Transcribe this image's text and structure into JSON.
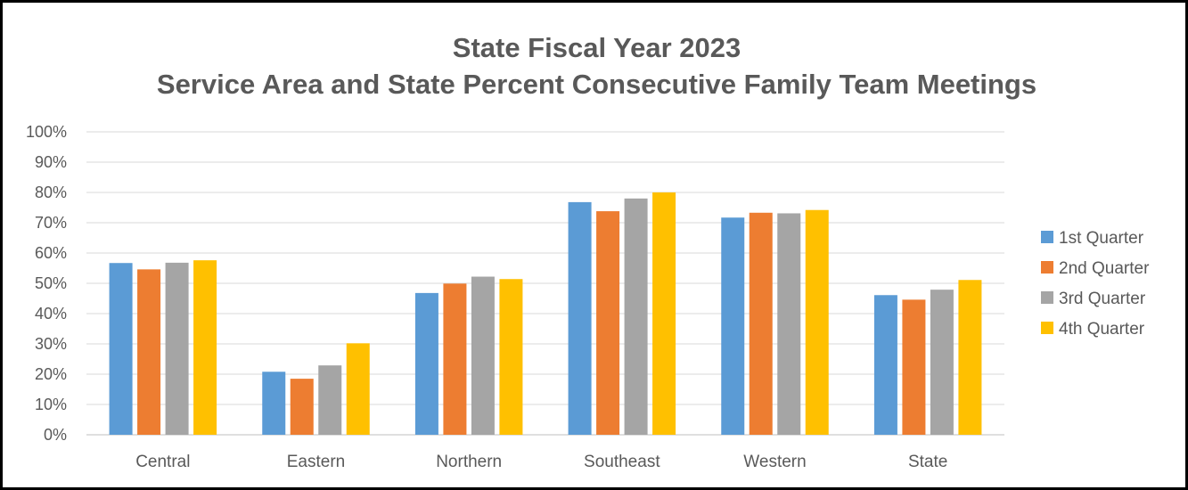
{
  "chart_data": {
    "type": "bar",
    "title": "State Fiscal Year 2023",
    "subtitle": "Service Area and State Percent Consecutive Family Team Meetings",
    "xlabel": "",
    "ylabel": "",
    "ylim": [
      0,
      100
    ],
    "y_ticks": [
      "0%",
      "10%",
      "20%",
      "30%",
      "40%",
      "50%",
      "60%",
      "70%",
      "80%",
      "90%",
      "100%"
    ],
    "grid": true,
    "legend_position": "right",
    "categories": [
      "Central",
      "Eastern",
      "Northern",
      "Southeast",
      "Western",
      "State"
    ],
    "series": [
      {
        "name": "1st Quarter",
        "color": "#5B9BD5",
        "values": [
          56.7,
          20.8,
          46.8,
          76.8,
          71.7,
          46.1
        ]
      },
      {
        "name": "2nd Quarter",
        "color": "#ED7D31",
        "values": [
          54.6,
          18.5,
          49.9,
          73.8,
          73.3,
          44.6
        ]
      },
      {
        "name": "3rd Quarter",
        "color": "#A5A5A5",
        "values": [
          56.8,
          22.9,
          52.2,
          78.0,
          73.1,
          47.9
        ]
      },
      {
        "name": "4th Quarter",
        "color": "#FFC000",
        "values": [
          57.6,
          30.2,
          51.4,
          80.0,
          74.2,
          51.1
        ]
      }
    ]
  }
}
